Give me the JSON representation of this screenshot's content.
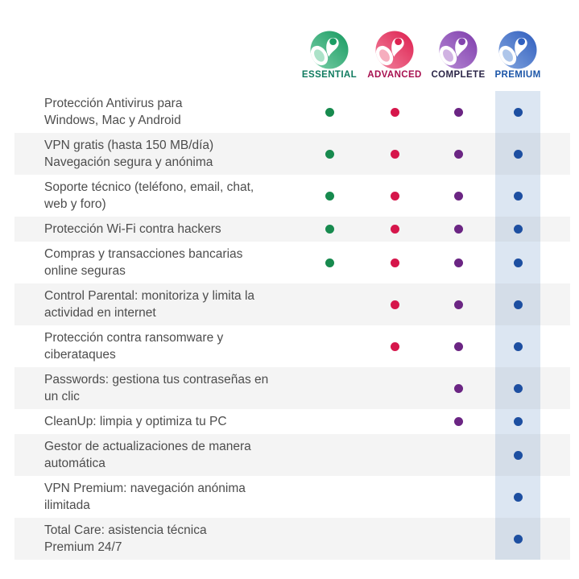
{
  "colors": {
    "background": "#ffffff",
    "row_stripe": "rgba(125,125,125,0.085)",
    "premium_band": "#dce6f2",
    "feature_text": "#4d4d4d"
  },
  "plans": [
    {
      "id": "essential",
      "label": "ESSENTIAL",
      "label_color": "#0f7b5f",
      "dot_color": "#178a4e",
      "logo_icon": "panda-logo-green",
      "logo_light": "#7dd0aa",
      "logo_dark": "#179a60",
      "logo_ear": "#1b9e64",
      "logo_petal": "#abe2c8",
      "highlight": false
    },
    {
      "id": "advanced",
      "label": "ADVANCED",
      "label_color": "#a81150",
      "dot_color": "#d6164b",
      "logo_icon": "panda-logo-red",
      "logo_light": "#f286a0",
      "logo_dark": "#dd1e4e",
      "logo_ear": "#dd2250",
      "logo_petal": "#f6aebe",
      "highlight": false
    },
    {
      "id": "complete",
      "label": "COMPLETE",
      "label_color": "#2b2547",
      "dot_color": "#6b2583",
      "logo_icon": "panda-logo-purple",
      "logo_light": "#b88cd6",
      "logo_dark": "#7e3cab",
      "logo_ear": "#8344ae",
      "logo_petal": "#d0b2e2",
      "highlight": false
    },
    {
      "id": "premium",
      "label": "PREMIUM",
      "label_color": "#1c56a8",
      "dot_color": "#1d4fa1",
      "logo_icon": "panda-logo-blue",
      "logo_light": "#86a8e0",
      "logo_dark": "#2f5dbd",
      "logo_ear": "#3060c0",
      "logo_petal": "#aec6ea",
      "highlight": true
    }
  ],
  "features": [
    {
      "label": "Protección Antivirus para\nWindows, Mac y Android",
      "included": [
        true,
        true,
        true,
        true
      ]
    },
    {
      "label": "VPN gratis (hasta 150 MB/día)\nNavegación segura y anónima",
      "included": [
        true,
        true,
        true,
        true
      ]
    },
    {
      "label": "Soporte técnico (teléfono, email, chat,\nweb y foro)",
      "included": [
        true,
        true,
        true,
        true
      ]
    },
    {
      "label": "Protección Wi-Fi contra hackers",
      "included": [
        true,
        true,
        true,
        true
      ]
    },
    {
      "label": "Compras y transacciones bancarias\nonline seguras",
      "included": [
        true,
        true,
        true,
        true
      ]
    },
    {
      "label": "Control Parental: monitoriza y limita la\nactividad en internet",
      "included": [
        false,
        true,
        true,
        true
      ]
    },
    {
      "label": "Protección contra ransomware y\nciberataques",
      "included": [
        false,
        true,
        true,
        true
      ]
    },
    {
      "label": "Passwords: gestiona tus contraseñas en\nun clic",
      "included": [
        false,
        false,
        true,
        true
      ]
    },
    {
      "label": "CleanUp: limpia y optimiza tu PC",
      "included": [
        false,
        false,
        true,
        true
      ]
    },
    {
      "label": "Gestor de actualizaciones de manera\nautomática",
      "included": [
        false,
        false,
        false,
        true
      ]
    },
    {
      "label": "VPN Premium: navegación anónima\nilimitada",
      "included": [
        false,
        false,
        false,
        true
      ]
    },
    {
      "label": "Total Care: asistencia técnica\nPremium 24/7",
      "included": [
        false,
        false,
        false,
        true
      ]
    }
  ]
}
